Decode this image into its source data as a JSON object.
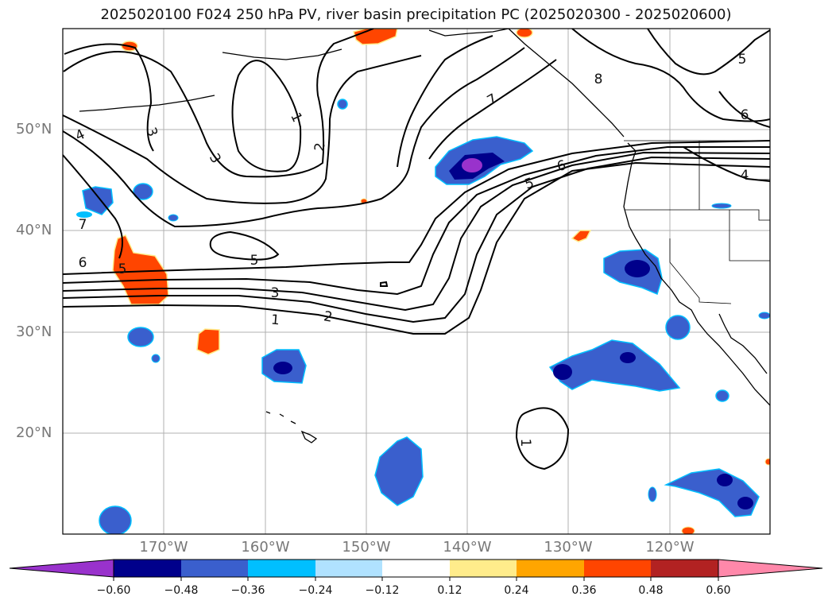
{
  "title": "2025020100 F024 250 hPa PV, river basin precipitation PC (2025020300 - 2025020600)",
  "map": {
    "lat_labels": [
      "50°N",
      "40°N",
      "30°N",
      "20°N"
    ],
    "lon_labels": [
      "170°W",
      "160°W",
      "150°W",
      "140°W",
      "130°W",
      "120°W"
    ],
    "contour_labels": [
      "4",
      "3",
      "3",
      "1",
      "2",
      "7",
      "6",
      "5",
      "5",
      "3",
      "2",
      "1",
      "7",
      "6",
      "5",
      "8",
      "5",
      "6",
      "4",
      "1"
    ]
  },
  "colorbar": {
    "ticks": [
      "−0.60",
      "−0.48",
      "−0.36",
      "−0.24",
      "−0.12",
      "0.12",
      "0.24",
      "0.36",
      "0.48",
      "0.60"
    ],
    "colors": [
      "#9932cc",
      "#00008b",
      "#3a5fcd",
      "#00bfff",
      "#b0e2ff",
      "#ffffff",
      "#ffec8b",
      "#ffa500",
      "#ff4500",
      "#b22222",
      "#ff88aa"
    ]
  }
}
